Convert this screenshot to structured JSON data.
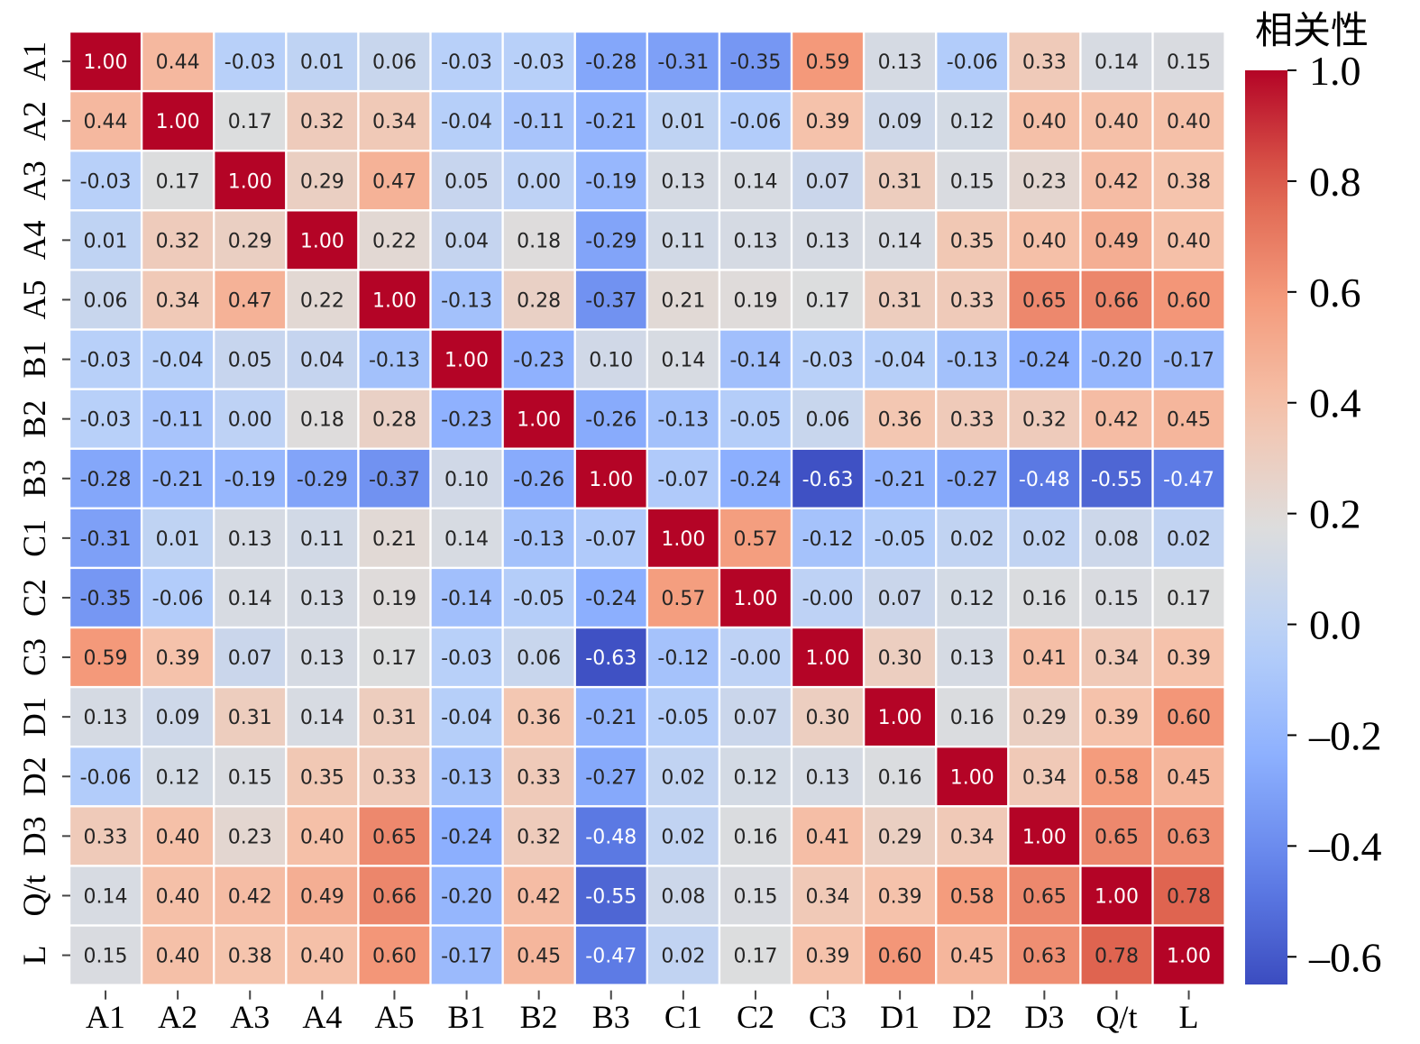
{
  "chart_data": {
    "type": "heatmap",
    "title": "",
    "x_labels": [
      "A1",
      "A2",
      "A3",
      "A4",
      "A5",
      "B1",
      "B2",
      "B3",
      "C1",
      "C2",
      "C3",
      "D1",
      "D2",
      "D3",
      "Q/t",
      "L"
    ],
    "y_labels": [
      "A1",
      "A2",
      "A3",
      "A4",
      "A5",
      "B1",
      "B2",
      "B3",
      "C1",
      "C2",
      "C3",
      "D1",
      "D2",
      "D3",
      "Q/t",
      "L"
    ],
    "value_labels": [
      [
        "1.00",
        "0.44",
        "-0.03",
        "0.01",
        "0.06",
        "-0.03",
        "-0.03",
        "-0.28",
        "-0.31",
        "-0.35",
        "0.59",
        "0.13",
        "-0.06",
        "0.33",
        "0.14",
        "0.15"
      ],
      [
        "0.44",
        "1.00",
        "0.17",
        "0.32",
        "0.34",
        "-0.04",
        "-0.11",
        "-0.21",
        "0.01",
        "-0.06",
        "0.39",
        "0.09",
        "0.12",
        "0.40",
        "0.40",
        "0.40"
      ],
      [
        "-0.03",
        "0.17",
        "1.00",
        "0.29",
        "0.47",
        "0.05",
        "0.00",
        "-0.19",
        "0.13",
        "0.14",
        "0.07",
        "0.31",
        "0.15",
        "0.23",
        "0.42",
        "0.38"
      ],
      [
        "0.01",
        "0.32",
        "0.29",
        "1.00",
        "0.22",
        "0.04",
        "0.18",
        "-0.29",
        "0.11",
        "0.13",
        "0.13",
        "0.14",
        "0.35",
        "0.40",
        "0.49",
        "0.40"
      ],
      [
        "0.06",
        "0.34",
        "0.47",
        "0.22",
        "1.00",
        "-0.13",
        "0.28",
        "-0.37",
        "0.21",
        "0.19",
        "0.17",
        "0.31",
        "0.33",
        "0.65",
        "0.66",
        "0.60"
      ],
      [
        "-0.03",
        "-0.04",
        "0.05",
        "0.04",
        "-0.13",
        "1.00",
        "-0.23",
        "0.10",
        "0.14",
        "-0.14",
        "-0.03",
        "-0.04",
        "-0.13",
        "-0.24",
        "-0.20",
        "-0.17"
      ],
      [
        "-0.03",
        "-0.11",
        "0.00",
        "0.18",
        "0.28",
        "-0.23",
        "1.00",
        "-0.26",
        "-0.13",
        "-0.05",
        "0.06",
        "0.36",
        "0.33",
        "0.32",
        "0.42",
        "0.45"
      ],
      [
        "-0.28",
        "-0.21",
        "-0.19",
        "-0.29",
        "-0.37",
        "0.10",
        "-0.26",
        "1.00",
        "-0.07",
        "-0.24",
        "-0.63",
        "-0.21",
        "-0.27",
        "-0.48",
        "-0.55",
        "-0.47"
      ],
      [
        "-0.31",
        "0.01",
        "0.13",
        "0.11",
        "0.21",
        "0.14",
        "-0.13",
        "-0.07",
        "1.00",
        "0.57",
        "-0.12",
        "-0.05",
        "0.02",
        "0.02",
        "0.08",
        "0.02"
      ],
      [
        "-0.35",
        "-0.06",
        "0.14",
        "0.13",
        "0.19",
        "-0.14",
        "-0.05",
        "-0.24",
        "0.57",
        "1.00",
        "-0.00",
        "0.07",
        "0.12",
        "0.16",
        "0.15",
        "0.17"
      ],
      [
        "0.59",
        "0.39",
        "0.07",
        "0.13",
        "0.17",
        "-0.03",
        "0.06",
        "-0.63",
        "-0.12",
        "-0.00",
        "1.00",
        "0.30",
        "0.13",
        "0.41",
        "0.34",
        "0.39"
      ],
      [
        "0.13",
        "0.09",
        "0.31",
        "0.14",
        "0.31",
        "-0.04",
        "0.36",
        "-0.21",
        "-0.05",
        "0.07",
        "0.30",
        "1.00",
        "0.16",
        "0.29",
        "0.39",
        "0.60"
      ],
      [
        "-0.06",
        "0.12",
        "0.15",
        "0.35",
        "0.33",
        "-0.13",
        "0.33",
        "-0.27",
        "0.02",
        "0.12",
        "0.13",
        "0.16",
        "1.00",
        "0.34",
        "0.58",
        "0.45"
      ],
      [
        "0.33",
        "0.40",
        "0.23",
        "0.40",
        "0.65",
        "-0.24",
        "0.32",
        "-0.48",
        "0.02",
        "0.16",
        "0.41",
        "0.29",
        "0.34",
        "1.00",
        "0.65",
        "0.63"
      ],
      [
        "0.14",
        "0.40",
        "0.42",
        "0.49",
        "0.66",
        "-0.20",
        "0.42",
        "-0.55",
        "0.08",
        "0.15",
        "0.34",
        "0.39",
        "0.58",
        "0.65",
        "1.00",
        "0.78"
      ],
      [
        "0.15",
        "0.40",
        "0.38",
        "0.40",
        "0.60",
        "-0.17",
        "0.45",
        "-0.47",
        "0.02",
        "0.17",
        "0.39",
        "0.60",
        "0.45",
        "0.63",
        "0.78",
        "1.00"
      ]
    ],
    "colorbar": {
      "title": "相关性",
      "range": [
        -0.65,
        1.0
      ],
      "ticks": [
        1.0,
        0.8,
        0.6,
        0.4,
        0.2,
        0.0,
        -0.2,
        -0.4,
        -0.6
      ],
      "tick_labels": [
        "1.0",
        "0.8",
        "0.6",
        "0.4",
        "0.2",
        "0.0",
        "–0.2",
        "–0.4",
        "–0.6"
      ],
      "colormap": "coolwarm"
    }
  }
}
